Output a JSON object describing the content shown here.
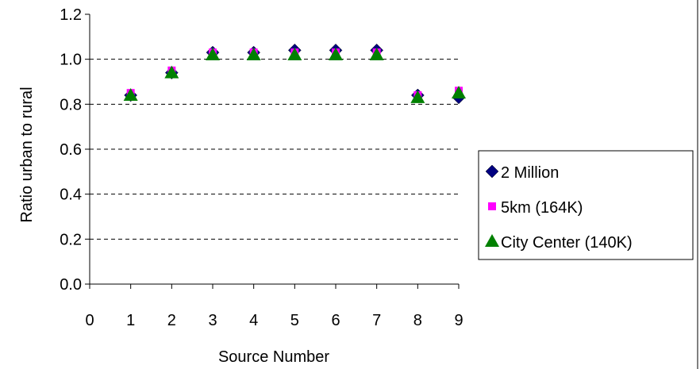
{
  "chart_data": {
    "type": "scatter",
    "xlabel": "Source Number",
    "ylabel": "Ratio urban to rural",
    "xlim": [
      0,
      9
    ],
    "ylim": [
      0.0,
      1.2
    ],
    "x_ticks": [
      "0",
      "1",
      "2",
      "3",
      "4",
      "5",
      "6",
      "7",
      "8",
      "9"
    ],
    "y_ticks": [
      "0.0",
      "0.2",
      "0.4",
      "0.6",
      "0.8",
      "1.0",
      "1.2"
    ],
    "grid": "horizontal dashed",
    "legend_position": "right",
    "series": [
      {
        "name": "2 Million",
        "marker": "diamond",
        "color": "#000080",
        "x": [
          1,
          2,
          3,
          4,
          5,
          6,
          7,
          8,
          9
        ],
        "y": [
          0.84,
          0.94,
          1.03,
          1.03,
          1.04,
          1.04,
          1.04,
          0.84,
          0.83
        ]
      },
      {
        "name": "5km (164K)",
        "marker": "square",
        "color": "#FF00FF",
        "x": [
          1,
          2,
          3,
          4,
          5,
          6,
          7,
          8,
          9
        ],
        "y": [
          0.85,
          0.95,
          1.03,
          1.03,
          1.03,
          1.03,
          1.03,
          0.84,
          0.86
        ]
      },
      {
        "name": "City Center (140K)",
        "marker": "triangle",
        "color": "#008000",
        "x": [
          1,
          2,
          3,
          4,
          5,
          6,
          7,
          8,
          9
        ],
        "y": [
          0.84,
          0.94,
          1.02,
          1.02,
          1.02,
          1.02,
          1.02,
          0.83,
          0.85
        ]
      }
    ]
  }
}
